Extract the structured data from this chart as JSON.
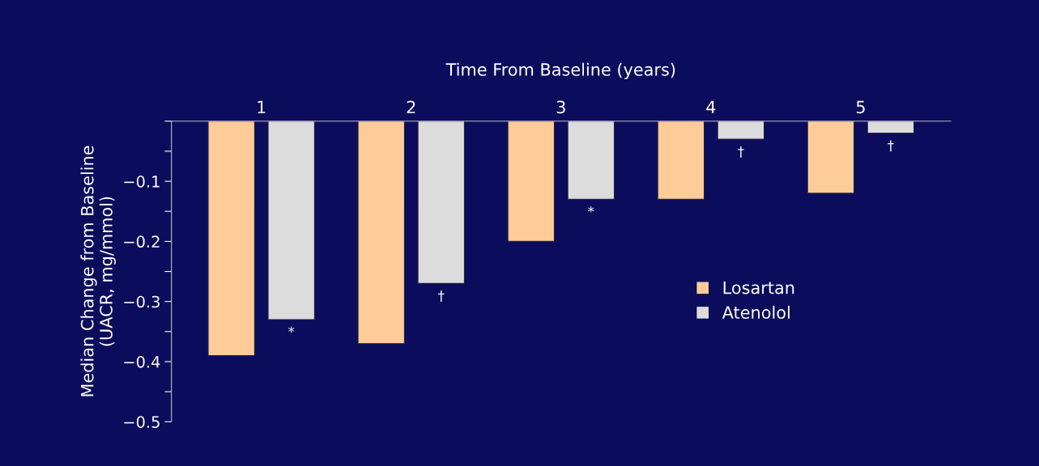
{
  "chart_data": {
    "type": "bar",
    "xlabel": "Time From Baseline (years)",
    "ylabel": "Median Change from Baseline\n(UACR, mg/mmol)",
    "categories": [
      "1",
      "2",
      "3",
      "4",
      "5"
    ],
    "series": [
      {
        "name": "Losartan",
        "color": "#ffcc99",
        "values": [
          -0.39,
          -0.37,
          -0.2,
          -0.13,
          -0.12
        ]
      },
      {
        "name": "Atenolol",
        "color": "#dcdcdc",
        "values": [
          -0.33,
          -0.27,
          -0.13,
          -0.03,
          -0.02
        ],
        "value_labels": [
          "*",
          "†",
          "*",
          "†",
          "†"
        ]
      }
    ],
    "ylim": [
      -0.5,
      0
    ],
    "yticks": [
      {
        "value": 0,
        "label": null
      },
      {
        "value": -0.05,
        "label": null
      },
      {
        "value": -0.1,
        "label": "−0.1"
      },
      {
        "value": -0.15,
        "label": null
      },
      {
        "value": -0.2,
        "label": "−0.2"
      },
      {
        "value": -0.25,
        "label": null
      },
      {
        "value": -0.3,
        "label": "−0.3"
      },
      {
        "value": -0.35,
        "label": null
      },
      {
        "value": -0.4,
        "label": "−0.4"
      },
      {
        "value": -0.45,
        "label": null
      },
      {
        "value": -0.5,
        "label": "−0.5"
      }
    ],
    "grid": false,
    "legend": "right"
  }
}
